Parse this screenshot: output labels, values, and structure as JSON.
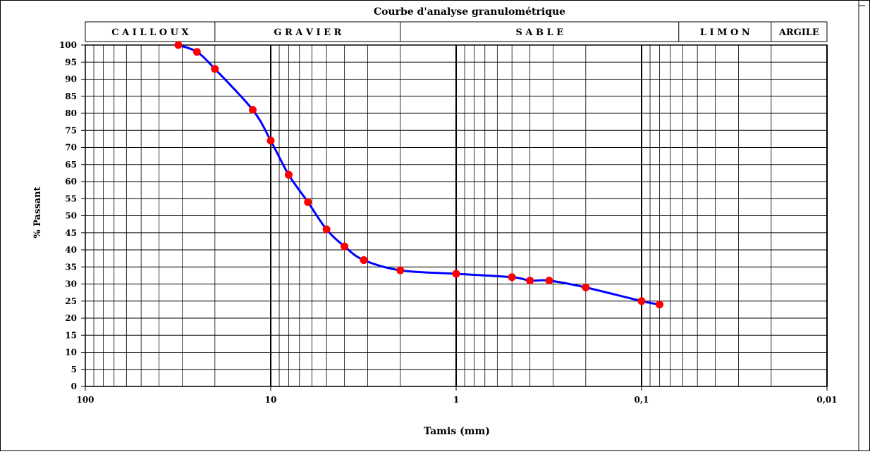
{
  "chart_data": {
    "type": "line",
    "title": "Courbe d'analyse granulométrique",
    "xlabel": "Tamis (mm)",
    "ylabel": "% Passant",
    "x_scale": "log",
    "x_reversed": true,
    "xlim": [
      100,
      0.01
    ],
    "ylim": [
      0,
      100
    ],
    "x_tick_labels": [
      {
        "value": 100,
        "label": "100"
      },
      {
        "value": 10,
        "label": "10"
      },
      {
        "value": 1,
        "label": "1"
      },
      {
        "value": 0.1,
        "label": "0,1"
      },
      {
        "value": 0.01,
        "label": "0,01"
      }
    ],
    "y_ticks": [
      0,
      5,
      10,
      15,
      20,
      25,
      30,
      35,
      40,
      45,
      50,
      55,
      60,
      65,
      70,
      75,
      80,
      85,
      90,
      95,
      100
    ],
    "grid": true,
    "soil_classes": [
      {
        "label": "C A I L L O U X",
        "from": 200,
        "to": 20
      },
      {
        "label": "G R A V I E R",
        "from": 20,
        "to": 2
      },
      {
        "label": "S A B L E",
        "from": 2,
        "to": 0.063
      },
      {
        "label": "L I M O N",
        "from": 0.063,
        "to": 0.02
      },
      {
        "label": "ARGILE",
        "from": 0.02,
        "to": 0.01
      }
    ],
    "series": [
      {
        "line_color": "#0000ff",
        "marker_color": "#ff0000",
        "x": [
          31.5,
          25,
          20,
          12.5,
          10,
          8,
          6.3,
          5,
          4,
          3.15,
          2,
          1,
          0.5,
          0.4,
          0.315,
          0.2,
          0.1,
          0.08
        ],
        "y": [
          100,
          98,
          93,
          81,
          72,
          62,
          54,
          46,
          41,
          37,
          34,
          33,
          32,
          31,
          31,
          29,
          25,
          24
        ]
      }
    ]
  }
}
